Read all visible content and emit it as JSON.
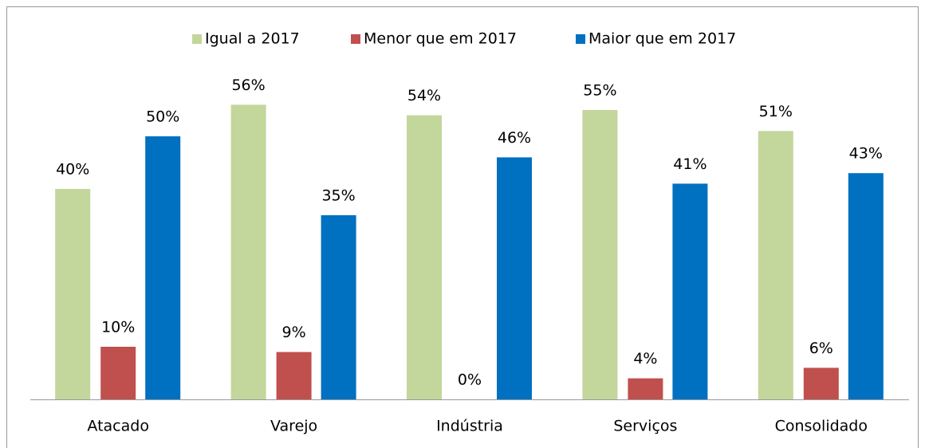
{
  "chart_data": {
    "type": "bar",
    "legend": "top",
    "categories": [
      "Atacado",
      "Varejo",
      "Indústria",
      "Serviços",
      "Consolidado"
    ],
    "series": [
      {
        "name": "Igual a 2017",
        "color": "#c3d69b",
        "values": [
          40,
          56,
          54,
          55,
          51
        ],
        "value_labels": [
          "40%",
          "56%",
          "54%",
          "55%",
          "51%"
        ]
      },
      {
        "name": "Menor que em 2017",
        "color": "#c0504d",
        "values": [
          10,
          9,
          0,
          4,
          6
        ],
        "value_labels": [
          "10%",
          "9%",
          "0%",
          "4%",
          "6%"
        ]
      },
      {
        "name": "Maior que em 2017",
        "color": "#0070c0",
        "values": [
          50,
          35,
          46,
          41,
          43
        ],
        "value_labels": [
          "50%",
          "35%",
          "46%",
          "41%",
          "43%"
        ]
      }
    ]
  }
}
